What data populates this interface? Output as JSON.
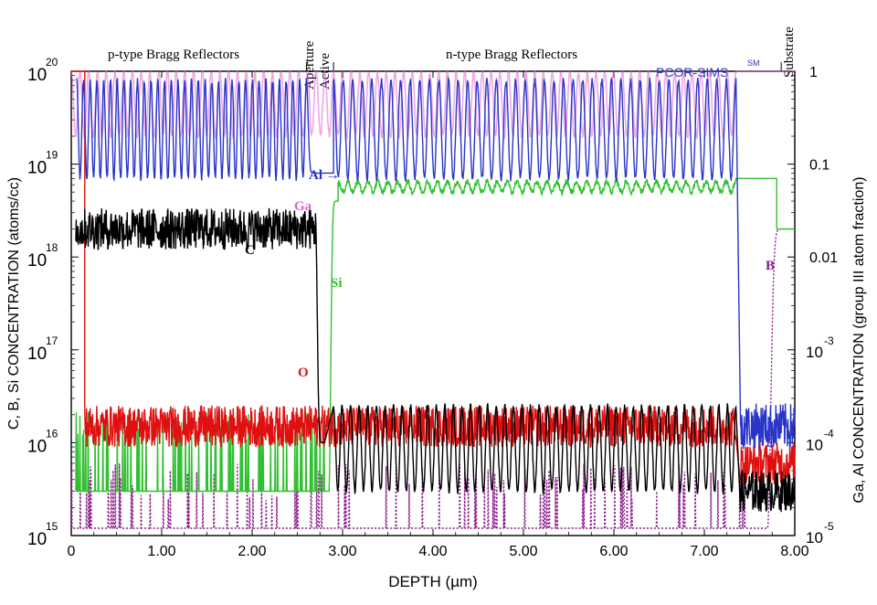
{
  "chart_data": {
    "type": "line",
    "xlabel": "DEPTH (µm)",
    "ylabel_left": "C, B, Si CONCENTRATION (atoms/cc)",
    "ylabel_right": "Ga, Al CONCENTRATION (group III atom fraction)",
    "xlim": [
      0,
      8
    ],
    "ylim_left": [
      1000000000000000.0,
      1e+20
    ],
    "ylim_right": [
      1e-05,
      1
    ],
    "y_scale": "log",
    "x_ticks": [
      "0",
      "1.00",
      "2.00",
      "3.00",
      "4.00",
      "5.00",
      "6.00",
      "7.00",
      "8.00"
    ],
    "y_left_ticks": [
      {
        "base": "10",
        "exp": "15"
      },
      {
        "base": "10",
        "exp": "16"
      },
      {
        "base": "10",
        "exp": "17"
      },
      {
        "base": "10",
        "exp": "18"
      },
      {
        "base": "10",
        "exp": "19"
      },
      {
        "base": "10",
        "exp": "20"
      }
    ],
    "y_right_ticks": [
      {
        "base": "10",
        "exp": "-5"
      },
      {
        "base": "10",
        "exp": "-4"
      },
      {
        "base": "10",
        "exp": "-3"
      },
      {
        "base": "",
        "exp": "0.01"
      },
      {
        "base": "",
        "exp": "0.1"
      },
      {
        "base": "",
        "exp": "1"
      }
    ],
    "region_labels": [
      {
        "text": "p-type  Bragg  Reflectors",
        "x": 1.0
      },
      {
        "text": "Aperture",
        "x": 2.67,
        "rotated": true
      },
      {
        "text": "Active",
        "x": 2.8,
        "rotated": true
      },
      {
        "text": "n-type  Bragg  Reflectors",
        "x": 5.0
      },
      {
        "text": "Substrate",
        "x": 7.95,
        "rotated": true
      }
    ],
    "brand": {
      "text": "PCOR-SIMS",
      "sup": "SM"
    },
    "grid": false,
    "series": [
      {
        "name": "Al",
        "axis": "right",
        "color": "#2a35c8",
        "segments": [
          {
            "x_start": 0.06,
            "x_end": 2.6,
            "pattern": "oscillation",
            "periods": 34,
            "low": 0.07,
            "high": 0.8
          },
          {
            "x_start": 2.6,
            "x_end": 2.9,
            "pattern": "dip",
            "value": 0.08
          },
          {
            "x_start": 2.9,
            "x_end": 7.35,
            "pattern": "oscillation",
            "periods": 42,
            "low": 0.07,
            "high": 0.8
          },
          {
            "x_start": 7.4,
            "x_end": 8.0,
            "pattern": "flat-noisy",
            "value": 0.00015
          }
        ]
      },
      {
        "name": "Ga",
        "axis": "right",
        "color": "#e060d0",
        "segments": [
          {
            "x_start": 0.0,
            "x_end": 7.35,
            "pattern": "oscillation",
            "periods": 76,
            "low": 0.2,
            "high": 1.0
          },
          {
            "x_start": 7.35,
            "x_end": 8.0,
            "pattern": "flat",
            "value": 1.0
          }
        ]
      },
      {
        "name": "C",
        "axis": "left",
        "color": "#000000",
        "segments": [
          {
            "x_start": 0.05,
            "x_end": 2.7,
            "pattern": "noisy",
            "value": 2e+18
          },
          {
            "x_start": 2.7,
            "x_end": 2.8,
            "pattern": "drop",
            "value": 1e+16
          },
          {
            "x_start": 2.9,
            "x_end": 7.35,
            "pattern": "oscillation",
            "periods": 47,
            "low": 3000000000000000.0,
            "high": 2.5e+16
          },
          {
            "x_start": 7.4,
            "x_end": 8.0,
            "pattern": "noisy",
            "value": 3000000000000000.0
          }
        ]
      },
      {
        "name": "Si",
        "axis": "left",
        "color": "#30c030",
        "segments": [
          {
            "x_start": 0.05,
            "x_end": 2.8,
            "pattern": "background",
            "value": 3000000000000000.0
          },
          {
            "x_start": 2.85,
            "x_end": 2.95,
            "pattern": "rise",
            "value": 4e+18
          },
          {
            "x_start": 2.95,
            "x_end": 7.35,
            "pattern": "oscillation",
            "periods": 40,
            "low": 5e+18,
            "high": 6.5e+18
          },
          {
            "x_start": 7.35,
            "x_end": 7.8,
            "pattern": "flat",
            "value": 7e+18
          },
          {
            "x_start": 7.8,
            "x_end": 8.0,
            "pattern": "flat",
            "value": 2e+18
          }
        ]
      },
      {
        "name": "O",
        "axis": "left",
        "color": "#e01010",
        "segments": [
          {
            "x_start": 0.0,
            "x_end": 0.15,
            "pattern": "decay",
            "value": 1e+20
          },
          {
            "x_start": 0.15,
            "x_end": 7.35,
            "pattern": "noisy",
            "value": 1.5e+16
          },
          {
            "x_start": 7.4,
            "x_end": 8.0,
            "pattern": "noisy",
            "value": 6000000000000000.0
          }
        ]
      },
      {
        "name": "B",
        "axis": "left",
        "color": "#8a1a8a",
        "segments": [
          {
            "x_start": 0.0,
            "x_end": 7.7,
            "pattern": "spiky-background",
            "value": 1200000000000000.0
          },
          {
            "x_start": 7.7,
            "x_end": 8.0,
            "pattern": "rise",
            "value": 2e+18
          }
        ]
      }
    ],
    "annotations": [
      {
        "text": "Al",
        "arrow": "→",
        "color": "#2a35c8"
      },
      {
        "text": "Ga",
        "color": "#e060d0"
      },
      {
        "text": "C",
        "color": "#000000"
      },
      {
        "text": "Si",
        "color": "#30c030"
      },
      {
        "text": "O",
        "color": "#e01010"
      },
      {
        "text": "B",
        "color": "#8a1a8a"
      }
    ]
  }
}
